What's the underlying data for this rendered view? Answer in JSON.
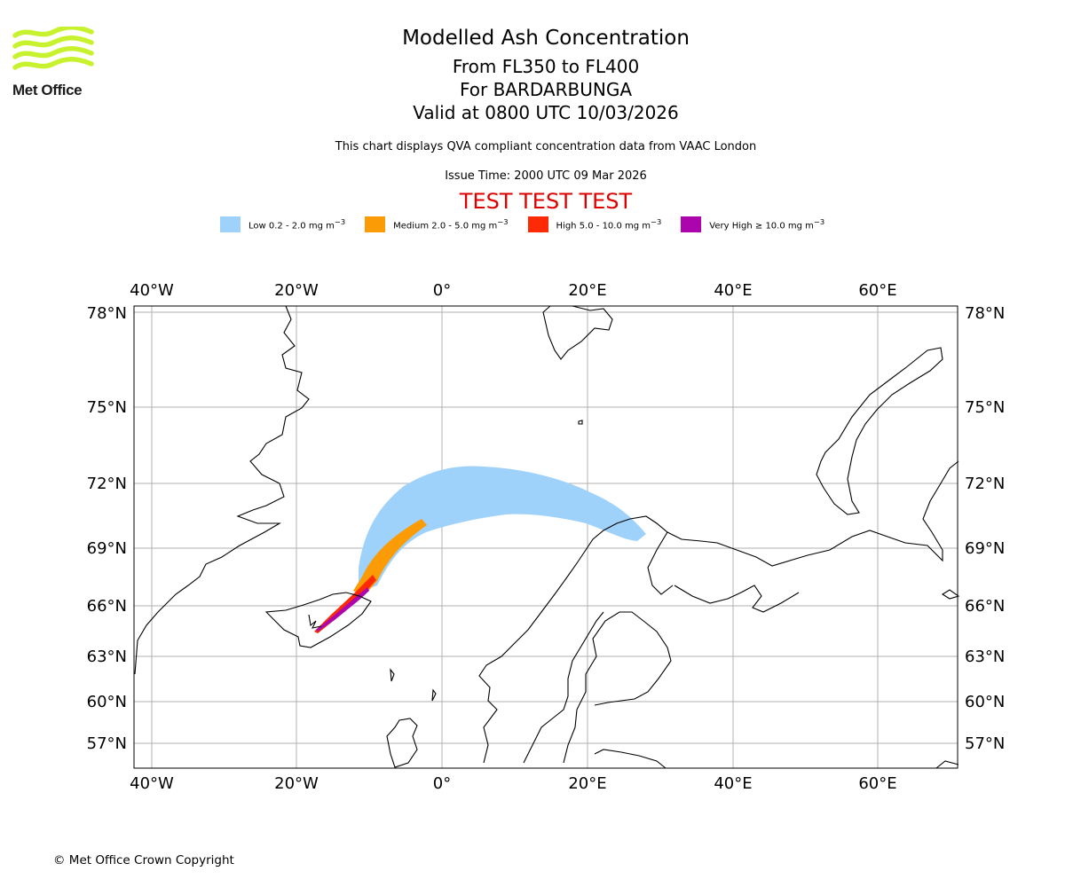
{
  "logo": {
    "text": "Met Office",
    "color": "#c8f22e"
  },
  "header": {
    "title": "Modelled Ash Concentration",
    "levels": "From FL350 to FL400",
    "volcano": "For BARDARBUNGA",
    "valid": "Valid at 0800 UTC 10/03/2026",
    "note": "This chart displays QVA compliant concentration data from VAAC London",
    "issue_time": "Issue Time: 2000 UTC 09 Mar 2026",
    "test_banner": "TEST TEST TEST",
    "test_color": "#dd0000"
  },
  "legend": [
    {
      "label": "Low 0.2 - 2.0 mg m",
      "sup": "−3",
      "color": "#9fd2fb"
    },
    {
      "label": "Medium 2.0 - 5.0 mg m",
      "sup": "−3",
      "color": "#fb9b06"
    },
    {
      "label": "High 5.0 - 10.0 mg m",
      "sup": "−3",
      "color": "#fd2a05"
    },
    {
      "label": "Very High  ≥  10.0 mg m",
      "sup": "−3",
      "color": "#ad05ad"
    }
  ],
  "map": {
    "lon_ticks": [
      "40°W",
      "20°W",
      "0°",
      "20°E",
      "40°E",
      "60°E"
    ],
    "lat_ticks": [
      "78°N",
      "75°N",
      "72°N",
      "69°N",
      "66°N",
      "63°N",
      "60°N",
      "57°N"
    ]
  },
  "footer": {
    "copyright": "© Met Office Crown Copyright"
  }
}
